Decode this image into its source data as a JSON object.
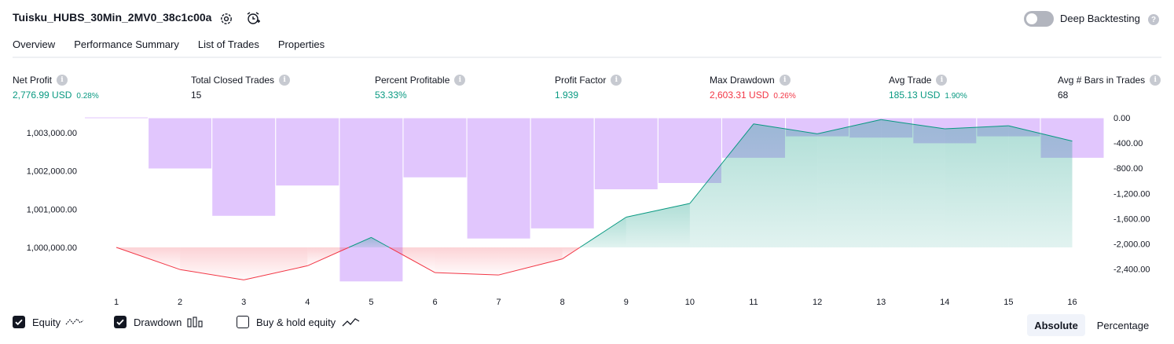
{
  "header": {
    "strategy_title": "Tuisku_HUBS_30Min_2MV0_38c1c00a",
    "settings_icon": "gear-icon",
    "alert_icon": "alarm-clock-plus-icon",
    "deep_backtesting_label": "Deep Backtesting",
    "deep_backtesting_on": false,
    "help_glyph": "?"
  },
  "tabs": [
    {
      "label": "Overview",
      "active": true
    },
    {
      "label": "Performance Summary",
      "active": false
    },
    {
      "label": "List of Trades",
      "active": false
    },
    {
      "label": "Properties",
      "active": false
    }
  ],
  "stats": [
    {
      "label": "Net Profit",
      "value": "2,776.99 USD",
      "pct": "0.28%",
      "color": "#089981"
    },
    {
      "label": "Total Closed Trades",
      "value": "15",
      "pct": "",
      "color": "#131722"
    },
    {
      "label": "Percent Profitable",
      "value": "53.33%",
      "pct": "",
      "color": "#089981"
    },
    {
      "label": "Profit Factor",
      "value": "1.939",
      "pct": "",
      "color": "#089981"
    },
    {
      "label": "Max Drawdown",
      "value": "2,603.31 USD",
      "pct": "0.26%",
      "color": "#f23645"
    },
    {
      "label": "Avg Trade",
      "value": "185.13 USD",
      "pct": "1.90%",
      "color": "#089981"
    },
    {
      "label": "Avg # Bars in Trades",
      "value": "68",
      "pct": "",
      "color": "#131722"
    }
  ],
  "info_glyph": "i",
  "chart_data": {
    "type": "line",
    "x": [
      1,
      2,
      3,
      4,
      5,
      6,
      7,
      8,
      9,
      10,
      11,
      12,
      13,
      14,
      15,
      16
    ],
    "series": [
      {
        "name": "Equity",
        "axis": "left",
        "values": [
          1000000,
          999420,
          999150,
          999520,
          1000260,
          999340,
          999280,
          999700,
          1000790,
          1001150,
          1003230,
          1002970,
          1003340,
          1003100,
          1003180,
          1002780
        ]
      },
      {
        "name": "Drawdown",
        "type": "bar",
        "axis": "right",
        "values": [
          0,
          -810,
          -1560,
          -1080,
          -2600,
          -950,
          -1920,
          -1760,
          -1140,
          -1040,
          -640,
          -300,
          -320,
          -410,
          -300,
          -640
        ]
      }
    ],
    "left_ticks": [
      "1,003,000.00",
      "1,002,000.00",
      "1,001,000.00",
      "1,000,000.00"
    ],
    "left_tick_values": [
      1003000,
      1002000,
      1001000,
      1000000
    ],
    "right_ticks": [
      "0.00",
      "-400.00",
      "-800.00",
      "-1,200.00",
      "-1,600.00",
      "-2,000.00",
      "-2,400.00"
    ],
    "right_tick_values": [
      0,
      -400,
      -800,
      -1200,
      -1600,
      -2000,
      -2400
    ],
    "x_ticks": [
      "1",
      "2",
      "3",
      "4",
      "5",
      "6",
      "7",
      "8",
      "9",
      "10",
      "11",
      "12",
      "13",
      "14",
      "15",
      "16"
    ],
    "baseline": 1000000,
    "colors": {
      "equity_up": "#089981",
      "equity_down": "#f23645",
      "drawdown": "#e1c6fd"
    }
  },
  "legend": [
    {
      "label": "Equity",
      "checked": true,
      "icon": "equity-line-icon"
    },
    {
      "label": "Drawdown",
      "checked": true,
      "icon": "drawdown-bars-icon"
    },
    {
      "label": "Buy & hold equity",
      "checked": false,
      "icon": "buy-hold-line-icon"
    }
  ],
  "scale_modes": [
    {
      "label": "Absolute",
      "active": true
    },
    {
      "label": "Percentage",
      "active": false
    }
  ]
}
